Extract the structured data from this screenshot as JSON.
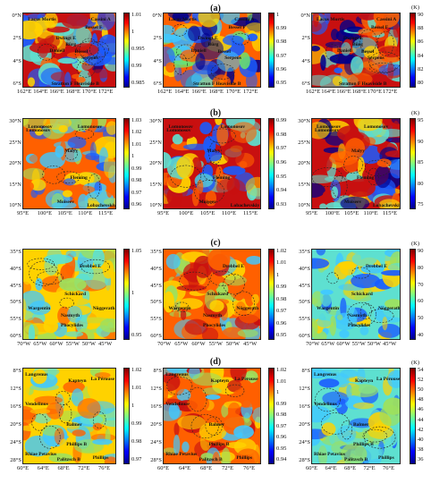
{
  "rows": [
    {
      "label": "(a)",
      "lat_ticks": [
        "0°N",
        "2°S",
        "4°S",
        "6°S"
      ],
      "lon_ticks": [
        "162°E",
        "164°E",
        "166°E",
        "168°E",
        "170°E",
        "172°E"
      ],
      "features": [
        "Cassini A",
        "Lacus Mortis",
        "Daniell",
        "Bürg",
        "Bessel",
        "Serpens",
        "Stratton F Heaviside B",
        "Dwingt E",
        "Bessel F"
      ],
      "panels": [
        {
          "cbar_ticks": [
            "1.01",
            "1",
            "0.995",
            "0.99",
            "0.985"
          ],
          "unit": "",
          "colors": [
            "#c81010",
            "#ff6000",
            "#ffd200",
            "#5ee0d0",
            "#1a5cff",
            "#00008b"
          ]
        },
        {
          "cbar_ticks": [
            "1",
            "0.99",
            "0.98",
            "0.97",
            "0.96",
            "0.95"
          ],
          "unit": "",
          "colors": [
            "#ff6000",
            "#ffd200",
            "#6be46b",
            "#40c8ff",
            "#1a5cff",
            "#00008b"
          ]
        },
        {
          "cbar_ticks": [
            "90",
            "88",
            "86",
            "84",
            "82",
            "80"
          ],
          "unit": "(K)",
          "colors": [
            "#c81010",
            "#ff6000",
            "#ffd200",
            "#5ee0d0",
            "#1a5cff",
            "#00008b"
          ]
        }
      ]
    },
    {
      "label": "(b)",
      "lat_ticks": [
        "30°N",
        "25°N",
        "20°N",
        "15°N",
        "10°N"
      ],
      "lon_ticks": [
        "95°E",
        "100°E",
        "105°E",
        "110°E",
        "115°E"
      ],
      "features": [
        "Lomonosov",
        "Lomonosov",
        "Malyy",
        "Fleming",
        "Moiseev",
        "Lobachevskiy",
        "Lomonosov"
      ],
      "panels": [
        {
          "cbar_ticks": [
            "1.03",
            "1.02",
            "1.01",
            "1",
            "0.99",
            "0.98",
            "0.97",
            "0.96"
          ],
          "unit": "",
          "colors": [
            "#ff6000",
            "#ffd200",
            "#9de05e",
            "#40c8ff",
            "#1a5cff"
          ]
        },
        {
          "cbar_ticks": [
            "0.99",
            "0.98",
            "0.97",
            "0.96",
            "0.95",
            "0.94",
            "0.93"
          ],
          "unit": "",
          "colors": [
            "#c81010",
            "#ff6000",
            "#ffd200",
            "#5ee0d0",
            "#1a5cff"
          ]
        },
        {
          "cbar_ticks": [
            "95",
            "90",
            "85",
            "80",
            "75"
          ],
          "unit": "(K)",
          "colors": [
            "#c81010",
            "#ff6000",
            "#ffd200",
            "#5ee0d0",
            "#1a5cff",
            "#00008b"
          ]
        }
      ]
    },
    {
      "label": "(c)",
      "lat_ticks": [
        "35°S",
        "40°S",
        "45°S",
        "50°S",
        "55°S",
        "60°S"
      ],
      "lon_ticks": [
        "70°W",
        "65°W",
        "60°W",
        "55°W",
        "50°W",
        "45°W"
      ],
      "features": [
        "Drebbel E",
        "Schickard",
        "Wargentin",
        "Nasmyth",
        "Nöggerath",
        "Phocylides"
      ],
      "panels": [
        {
          "cbar_ticks": [
            "1.05",
            "1",
            "0.95"
          ],
          "unit": "",
          "colors": [
            "#ffd200",
            "#9de05e",
            "#5ee0d0",
            "#40c8ff",
            "#ff6000"
          ]
        },
        {
          "cbar_ticks": [
            "1.02",
            "1.01",
            "1",
            "0.99",
            "0.98",
            "0.97",
            "0.96",
            "0.95"
          ],
          "unit": "",
          "colors": [
            "#ff6000",
            "#ffd200",
            "#9de05e",
            "#40c8ff",
            "#c81010"
          ]
        },
        {
          "cbar_ticks": [
            "90",
            "80",
            "70",
            "60",
            "50",
            "40"
          ],
          "unit": "(K)",
          "colors": [
            "#5ee0d0",
            "#40c8ff",
            "#9de05e",
            "#1a5cff",
            "#ffd200"
          ]
        }
      ]
    },
    {
      "label": "(d)",
      "lat_ticks": [
        "8°S",
        "12°S",
        "16°S",
        "20°S",
        "24°S",
        "28°S"
      ],
      "lon_ticks": [
        "60°E",
        "64°E",
        "68°E",
        "72°E",
        "76°E"
      ],
      "features": [
        "Langrenus",
        "Kapteyn",
        "La Pérouse",
        "Vendelinus",
        "Balmer",
        "Phillips B",
        "Rhiae Petavius",
        "Palitzsch B",
        "Phillips"
      ],
      "panels": [
        {
          "cbar_ticks": [
            "1.02",
            "1.01",
            "1",
            "0.99",
            "0.98",
            "0.97"
          ],
          "unit": "",
          "colors": [
            "#ffd200",
            "#9de05e",
            "#5ee0d0",
            "#40c8ff",
            "#ff6000"
          ]
        },
        {
          "cbar_ticks": [
            "1.02",
            "1.01",
            "1",
            "0.99",
            "0.98",
            "0.97",
            "0.96",
            "0.95",
            "0.94"
          ],
          "unit": "",
          "colors": [
            "#ff6000",
            "#ffd200",
            "#c81010",
            "#9de05e",
            "#40c8ff"
          ]
        },
        {
          "cbar_ticks": [
            "54",
            "52",
            "50",
            "48",
            "46",
            "44",
            "42",
            "40",
            "38",
            "36"
          ],
          "unit": "(K)",
          "colors": [
            "#5ee0d0",
            "#40c8ff",
            "#ffd200",
            "#9de05e",
            "#1a5cff"
          ]
        }
      ]
    }
  ]
}
